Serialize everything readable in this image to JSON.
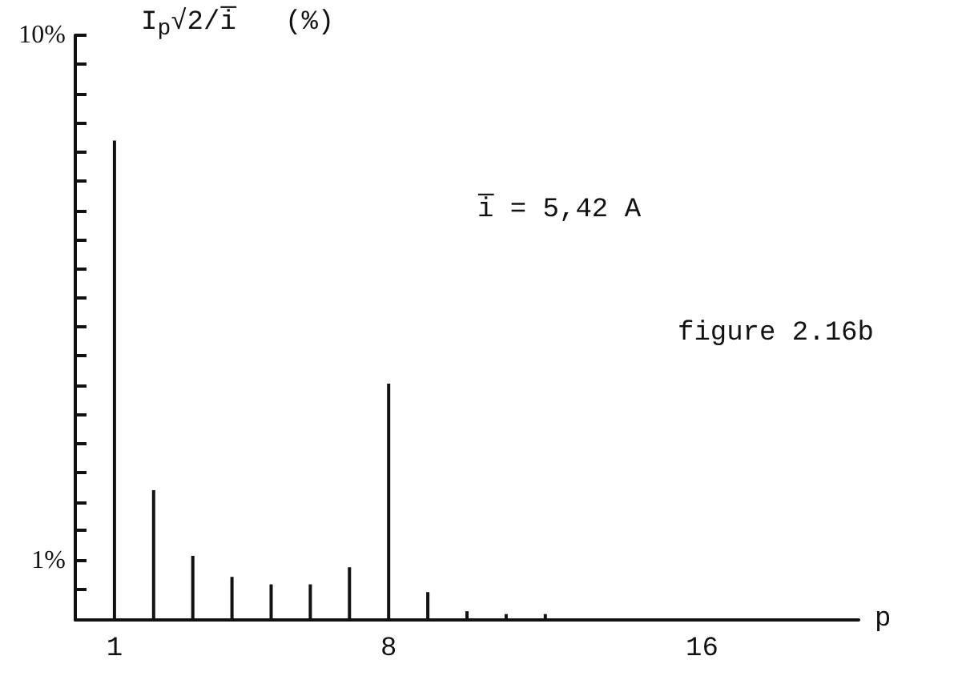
{
  "chart_data": {
    "type": "bar",
    "color": "#111111",
    "ylabel": "I$_{p}$√2/i̅   (%)",
    "xlabel": "p",
    "annotations": [
      "i̅ = 5,42 A",
      "figure 2.16b"
    ],
    "x": [
      1,
      2,
      3,
      4,
      5,
      6,
      7,
      8,
      9,
      10,
      11,
      12
    ],
    "values": [
      6.3,
      1.36,
      1.02,
      0.93,
      0.9,
      0.9,
      0.97,
      2.17,
      0.87,
      0.8,
      0.79,
      0.79
    ],
    "log": true,
    "grid": false,
    "xlim": [
      0,
      20
    ],
    "xticks": [
      1,
      8,
      16
    ],
    "ylim": [
      0.77,
      10
    ],
    "yticks": [
      {
        "value": 0.88,
        "label": null
      },
      {
        "value": 1,
        "label": "1%"
      },
      {
        "value": 1.14,
        "label": null
      },
      {
        "value": 1.29,
        "label": null
      },
      {
        "value": 1.47,
        "label": null
      },
      {
        "value": 1.67,
        "label": null
      },
      {
        "value": 1.9,
        "label": null
      },
      {
        "value": 2.15,
        "label": null
      },
      {
        "value": 2.45,
        "label": null
      },
      {
        "value": 2.78,
        "label": null
      },
      {
        "value": 3.16,
        "label": null
      },
      {
        "value": 3.59,
        "label": null
      },
      {
        "value": 4.08,
        "label": null
      },
      {
        "value": 4.64,
        "label": null
      },
      {
        "value": 5.27,
        "label": null
      },
      {
        "value": 5.99,
        "label": null
      },
      {
        "value": 6.81,
        "label": null
      },
      {
        "value": 7.74,
        "label": null
      },
      {
        "value": 8.8,
        "label": null
      },
      {
        "value": 10,
        "label": "10%"
      }
    ]
  }
}
